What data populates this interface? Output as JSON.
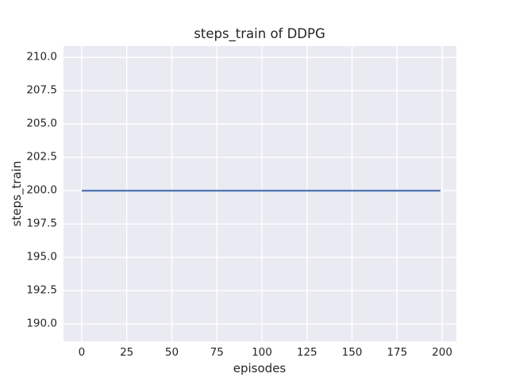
{
  "chart_data": {
    "type": "line",
    "title": "steps_train of DDPG",
    "xlabel": "episodes",
    "ylabel": "steps_train",
    "xlim": [
      -10.1,
      207.9
    ],
    "ylim": [
      188.7,
      210.85
    ],
    "grid": true,
    "legend_position": "none",
    "x_ticks": {
      "values": [
        0,
        25,
        50,
        75,
        100,
        125,
        150,
        175,
        200
      ],
      "labels": [
        "0",
        "25",
        "50",
        "75",
        "100",
        "125",
        "150",
        "175",
        "200"
      ]
    },
    "y_ticks": {
      "values": [
        190,
        192.5,
        195,
        197.5,
        200,
        202.5,
        205,
        207.5,
        210
      ],
      "labels": [
        "190.0",
        "192.5",
        "195.0",
        "197.5",
        "200.0",
        "202.5",
        "205.0",
        "207.5",
        "210.0"
      ]
    },
    "series": [
      {
        "name": "steps_train",
        "color": "#4c72b0",
        "x": [
          0,
          199
        ],
        "y": [
          200,
          200
        ]
      }
    ],
    "colors": {
      "figure_background": "#ffffff",
      "plot_background": "#eaeaf2",
      "gridline": "#ffffff",
      "text": "#262626",
      "line": "#4c72b0"
    }
  }
}
